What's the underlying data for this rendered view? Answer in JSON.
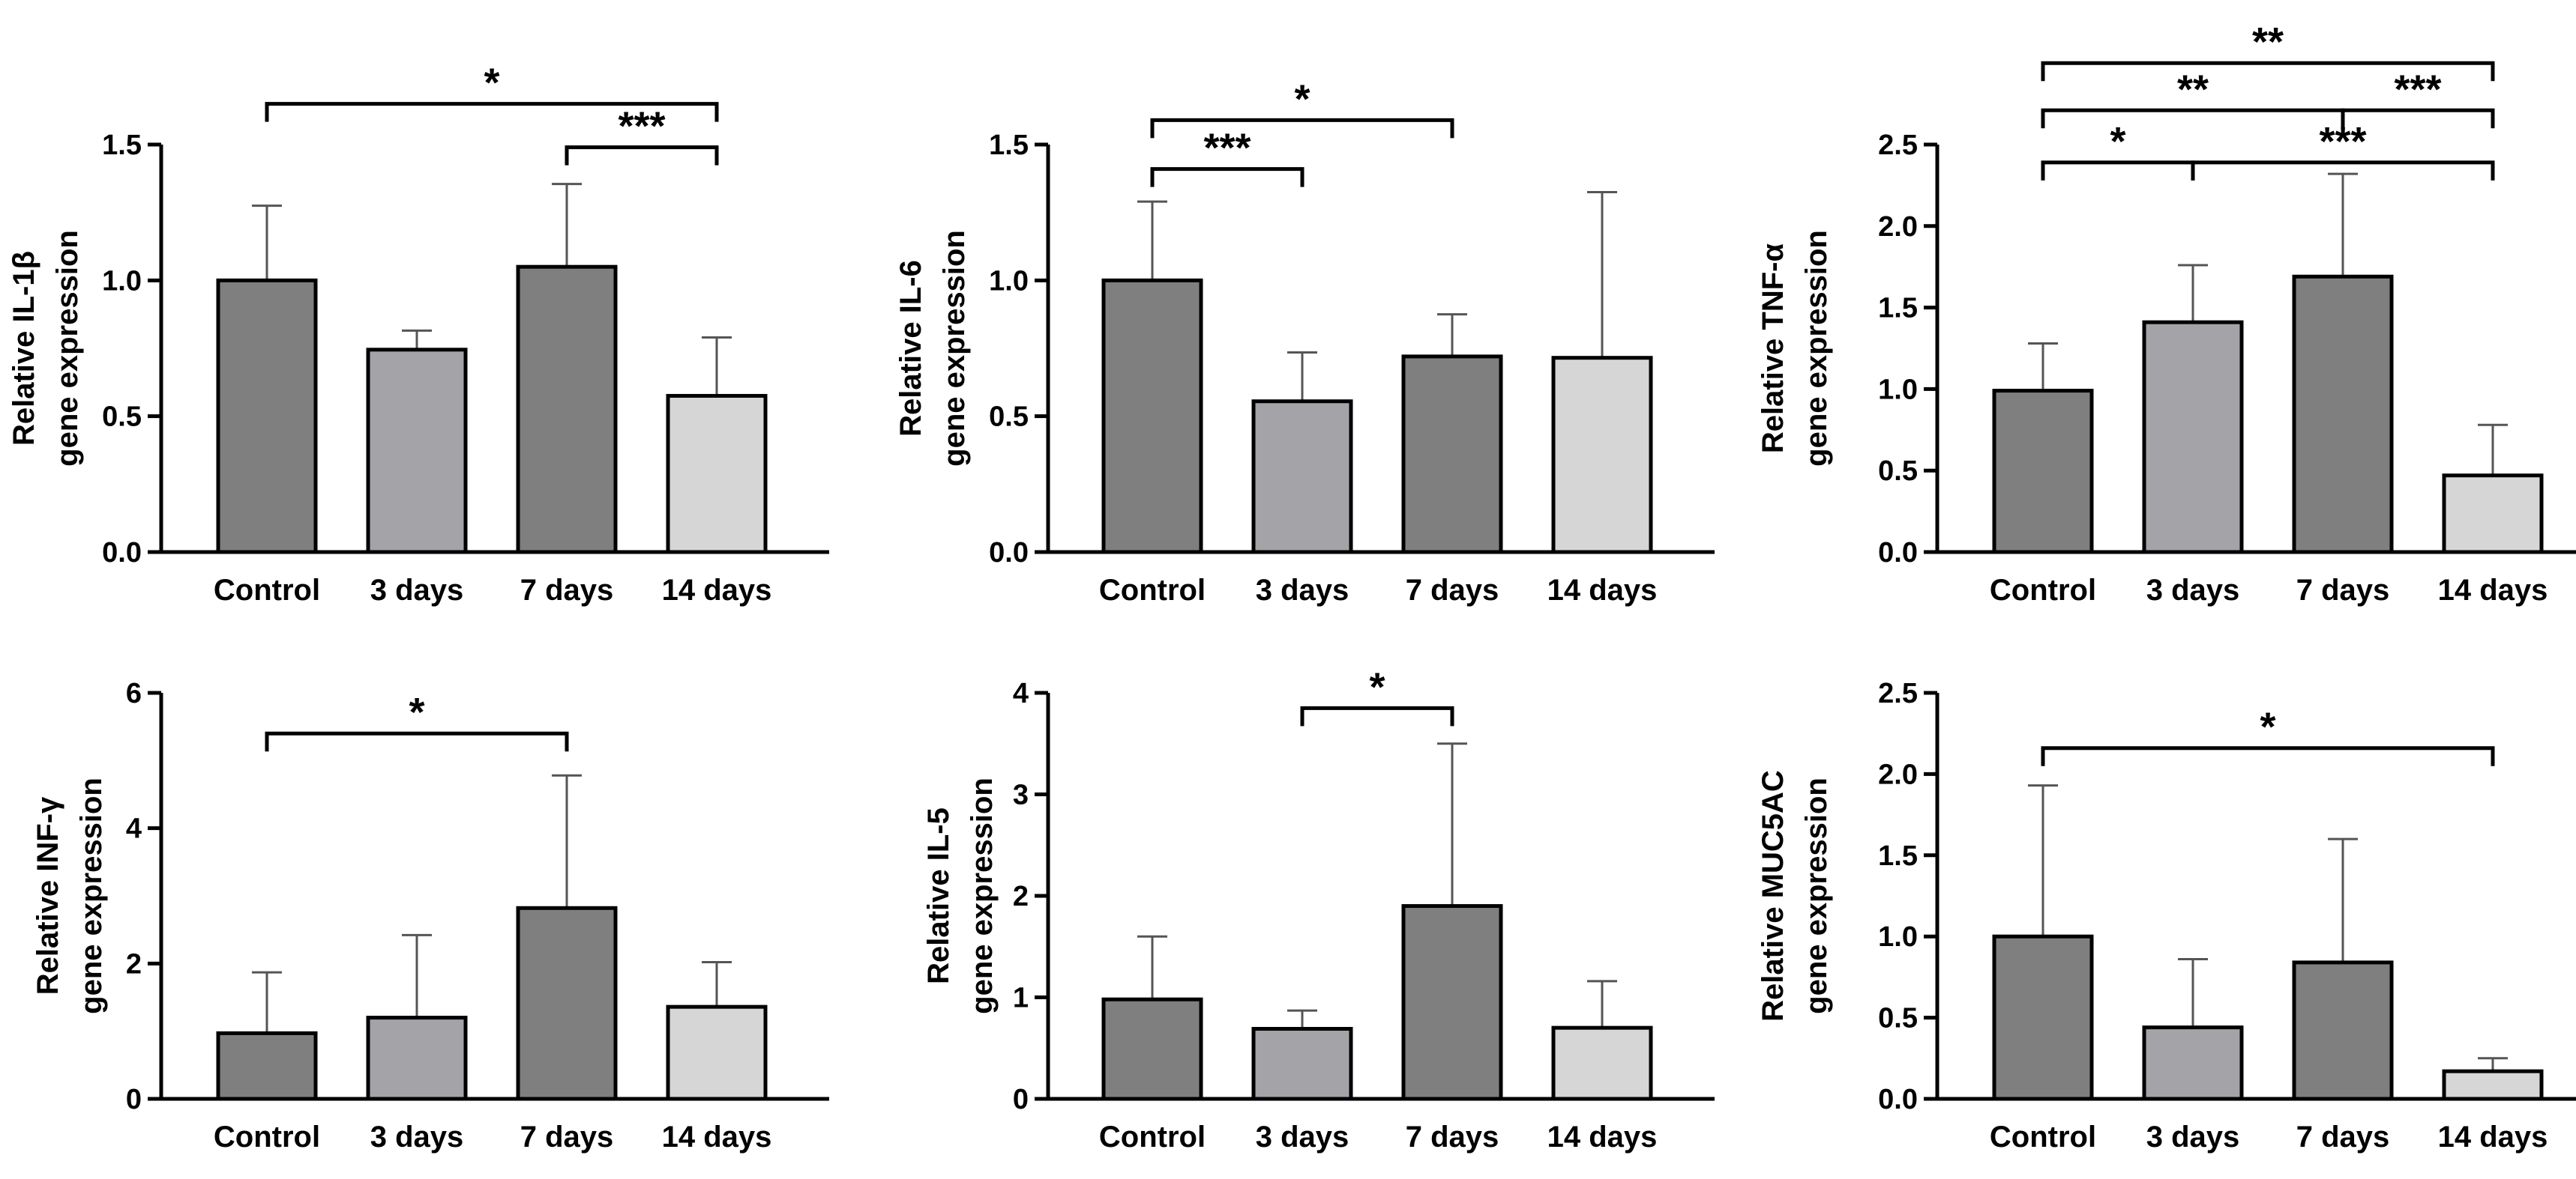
{
  "colors": {
    "control": "#7f7f7f",
    "3 days": "#a3a3a8",
    "7 days": "#7f7f7f",
    "14 days": "#d6d6d6",
    "stroke": "#000000",
    "error": "#555555"
  },
  "chart_data": [
    {
      "type": "bar",
      "ylabel_lines": [
        "Relative IL-1β",
        "gene expression"
      ],
      "categories": [
        "Control",
        "3 days",
        "7 days",
        "14 days"
      ],
      "values": [
        1.0,
        0.745,
        1.05,
        0.575
      ],
      "errors": [
        0.275,
        0.07,
        0.305,
        0.215
      ],
      "ylim": [
        0,
        1.5
      ],
      "yticks": [
        "0.0",
        "0.5",
        "1.0",
        "1.5"
      ],
      "significance": [
        {
          "from": "Control",
          "to": "14 days",
          "label": "*",
          "level": 1.65
        },
        {
          "from": "7 days",
          "to": "14 days",
          "label": "***",
          "level": 1.49
        }
      ]
    },
    {
      "type": "bar",
      "ylabel_lines": [
        "Relative IL-6",
        "gene expression"
      ],
      "categories": [
        "Control",
        "3 days",
        "7 days",
        "14 days"
      ],
      "values": [
        1.0,
        0.555,
        0.72,
        0.715
      ],
      "errors": [
        0.29,
        0.18,
        0.155,
        0.61
      ],
      "ylim": [
        0,
        1.5
      ],
      "yticks": [
        "0.0",
        "0.5",
        "1.0",
        "1.5"
      ],
      "significance": [
        {
          "from": "Control",
          "to": "7 days",
          "label": "*",
          "level": 1.59
        },
        {
          "from": "Control",
          "to": "3 days",
          "label": "***",
          "level": 1.41
        }
      ]
    },
    {
      "type": "bar",
      "ylabel_lines": [
        "Relative TNF-α",
        "gene expression"
      ],
      "categories": [
        "Control",
        "3 days",
        "7 days",
        "14 days"
      ],
      "values": [
        0.99,
        1.41,
        1.69,
        0.47
      ],
      "errors": [
        0.29,
        0.35,
        0.63,
        0.31
      ],
      "ylim": [
        0,
        2.5
      ],
      "yticks": [
        "0.0",
        "0.5",
        "1.0",
        "1.5",
        "2.0",
        "2.5"
      ],
      "significance": [
        {
          "from": "Control",
          "to": "14 days",
          "label": "**",
          "level": 3.0
        },
        {
          "from": "Control",
          "to": "7 days",
          "label": "**",
          "level": 2.71
        },
        {
          "from": "7 days",
          "to": "14 days",
          "label": "***",
          "level": 2.71
        },
        {
          "from": "Control",
          "to": "3 days",
          "label": "*",
          "level": 2.39
        },
        {
          "from": "3 days",
          "to": "14 days",
          "label": "***",
          "level": 2.39
        }
      ]
    },
    {
      "type": "bar",
      "ylabel_lines": [
        "Relative INF-γ",
        "gene expression"
      ],
      "categories": [
        "Control",
        "3 days",
        "7 days",
        "14 days"
      ],
      "values": [
        0.97,
        1.2,
        2.82,
        1.36
      ],
      "errors": [
        0.9,
        1.22,
        1.96,
        0.66
      ],
      "ylim": [
        0,
        6
      ],
      "yticks": [
        "0",
        "2",
        "4",
        "6"
      ],
      "significance": [
        {
          "from": "Control",
          "to": "7 days",
          "label": "*",
          "level": 5.4
        }
      ]
    },
    {
      "type": "bar",
      "ylabel_lines": [
        "Relative IL-5",
        "gene expression"
      ],
      "categories": [
        "Control",
        "3 days",
        "7 days",
        "14 days"
      ],
      "values": [
        0.98,
        0.69,
        1.9,
        0.7
      ],
      "errors": [
        0.62,
        0.18,
        1.6,
        0.46
      ],
      "ylim": [
        0,
        4
      ],
      "yticks": [
        "0",
        "1",
        "2",
        "3",
        "4"
      ],
      "significance": [
        {
          "from": "3 days",
          "to": "7 days",
          "label": "*",
          "level": 3.85
        }
      ]
    },
    {
      "type": "bar",
      "ylabel_lines": [
        "Relative MUC5AC",
        "gene expression"
      ],
      "categories": [
        "Control",
        "3 days",
        "7 days",
        "14 days"
      ],
      "values": [
        1.0,
        0.44,
        0.84,
        0.17
      ],
      "errors": [
        0.93,
        0.42,
        0.76,
        0.08
      ],
      "ylim": [
        0,
        2.5
      ],
      "yticks": [
        "0.0",
        "0.5",
        "1.0",
        "1.5",
        "2.0",
        "2.5"
      ],
      "significance": [
        {
          "from": "Control",
          "to": "14 days",
          "label": "*",
          "level": 2.16
        }
      ]
    }
  ]
}
